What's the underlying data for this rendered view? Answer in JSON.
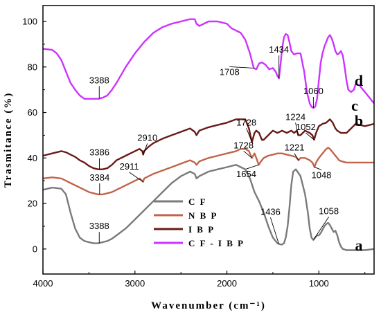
{
  "chart_data": {
    "type": "line",
    "xlabel": "Wavenumber (cm⁻¹)",
    "ylabel": "Trasmitance (%)",
    "xlim": [
      4000,
      400
    ],
    "ylim": [
      -11,
      107
    ],
    "xticks": [
      4000,
      3000,
      2000,
      1000
    ],
    "yticks": [
      0,
      20,
      40,
      60,
      80,
      100
    ],
    "legend": {
      "position": "bottom-left",
      "entries": [
        "C F",
        "N B P",
        "I B P",
        "C F - I B P"
      ]
    },
    "series": [
      {
        "name": "C F",
        "letter": "a",
        "color": "#7a7a7a",
        "x": [
          4000,
          3900,
          3800,
          3750,
          3700,
          3650,
          3600,
          3550,
          3500,
          3450,
          3400,
          3350,
          3300,
          3250,
          3200,
          3100,
          3000,
          2900,
          2800,
          2700,
          2600,
          2500,
          2400,
          2350,
          2330,
          2300,
          2200,
          2100,
          2000,
          1900,
          1850,
          1800,
          1750,
          1700,
          1650,
          1600,
          1550,
          1500,
          1450,
          1420,
          1400,
          1380,
          1360,
          1340,
          1320,
          1300,
          1280,
          1250,
          1200,
          1150,
          1120,
          1100,
          1080,
          1060,
          1040,
          1020,
          1000,
          980,
          960,
          940,
          920,
          900,
          880,
          860,
          840,
          820,
          800,
          780,
          760,
          740,
          700,
          650,
          600,
          500,
          400
        ],
        "y": [
          26,
          27,
          26.5,
          24,
          16,
          9,
          5,
          3.5,
          3,
          2.5,
          2.5,
          3,
          3.5,
          4.5,
          6,
          9,
          13,
          17,
          21,
          25,
          29,
          32,
          34,
          33,
          31,
          32,
          34,
          35,
          36,
          37,
          36,
          35,
          31,
          25,
          21,
          16,
          10,
          5,
          2.5,
          2,
          2,
          2.5,
          5,
          10,
          18,
          28,
          34,
          35,
          32,
          24,
          16,
          9,
          5,
          4,
          5,
          6,
          6,
          7,
          8.5,
          10,
          11,
          11.5,
          10.5,
          9,
          7.5,
          8,
          6,
          3,
          1,
          0,
          -0.5,
          -0.5,
          -0.5,
          -0.5,
          0
        ]
      },
      {
        "name": "N B P",
        "letter": "b",
        "color": "#c0644a",
        "x": [
          4000,
          3900,
          3800,
          3750,
          3700,
          3650,
          3600,
          3550,
          3500,
          3450,
          3400,
          3350,
          3300,
          3250,
          3200,
          3100,
          3000,
          2950,
          2920,
          2911,
          2900,
          2850,
          2800,
          2700,
          2600,
          2500,
          2400,
          2350,
          2330,
          2300,
          2200,
          2100,
          2000,
          1900,
          1850,
          1800,
          1760,
          1740,
          1728,
          1715,
          1700,
          1680,
          1654,
          1630,
          1600,
          1550,
          1500,
          1450,
          1400,
          1350,
          1300,
          1250,
          1221,
          1200,
          1150,
          1100,
          1070,
          1048,
          1030,
          1000,
          960,
          920,
          900,
          880,
          860,
          840,
          820,
          800,
          780,
          750,
          700,
          650,
          600,
          500,
          400
        ],
        "y": [
          31,
          31.5,
          31,
          30,
          29,
          28,
          27,
          26,
          25,
          24.5,
          24,
          24,
          24.5,
          25,
          26,
          28,
          30,
          31,
          30,
          29.5,
          31,
          32,
          33,
          34.5,
          36,
          37.5,
          39,
          38,
          37,
          38.5,
          40,
          41,
          42,
          43,
          44,
          44,
          43,
          41,
          40,
          41,
          42,
          40,
          37,
          38.5,
          40,
          41,
          41.5,
          42,
          42,
          41.5,
          41,
          40.5,
          39,
          40,
          40,
          39,
          38,
          36,
          38,
          40,
          42,
          44,
          44.5,
          44,
          43,
          42,
          41,
          40,
          39,
          38.5,
          38,
          38,
          38,
          38,
          38
        ]
      },
      {
        "name": "I B P",
        "letter": "c",
        "color": "#6b1a16",
        "x": [
          4000,
          3900,
          3800,
          3750,
          3700,
          3650,
          3600,
          3550,
          3500,
          3450,
          3400,
          3350,
          3300,
          3250,
          3200,
          3100,
          3000,
          2950,
          2920,
          2910,
          2900,
          2850,
          2800,
          2700,
          2600,
          2500,
          2400,
          2350,
          2330,
          2300,
          2200,
          2100,
          2000,
          1900,
          1850,
          1800,
          1760,
          1740,
          1728,
          1700,
          1680,
          1650,
          1620,
          1600,
          1550,
          1500,
          1450,
          1400,
          1350,
          1300,
          1270,
          1240,
          1224,
          1200,
          1150,
          1100,
          1070,
          1052,
          1030,
          1000,
          960,
          920,
          880,
          850,
          820,
          800,
          760,
          700,
          650,
          600,
          500,
          400
        ],
        "y": [
          41,
          42,
          43,
          42.5,
          41.5,
          40.5,
          39,
          38,
          36.5,
          35.5,
          35,
          35,
          35.5,
          37,
          39,
          41,
          43,
          44,
          43,
          41.5,
          43,
          45,
          46.5,
          48.5,
          50,
          51.5,
          53,
          51.5,
          50,
          52,
          53.5,
          54.5,
          55.5,
          57,
          57,
          57,
          53,
          49,
          47,
          51,
          52,
          51,
          48,
          48,
          50,
          52,
          51,
          52,
          51,
          52,
          51,
          52,
          50,
          50,
          52,
          51,
          50,
          48,
          51,
          54,
          55,
          55.5,
          57,
          55.5,
          53,
          52,
          51,
          51,
          53,
          55,
          54,
          55
        ]
      },
      {
        "name": "C F - I B P",
        "letter": "d",
        "color": "#cc33ff",
        "x": [
          4000,
          3900,
          3850,
          3800,
          3750,
          3700,
          3650,
          3600,
          3550,
          3500,
          3450,
          3400,
          3350,
          3300,
          3250,
          3200,
          3100,
          3000,
          2900,
          2800,
          2700,
          2600,
          2500,
          2400,
          2350,
          2330,
          2300,
          2200,
          2100,
          2000,
          1950,
          1900,
          1850,
          1800,
          1750,
          1708,
          1680,
          1650,
          1620,
          1580,
          1540,
          1500,
          1470,
          1450,
          1434,
          1420,
          1400,
          1380,
          1360,
          1340,
          1320,
          1300,
          1270,
          1240,
          1200,
          1160,
          1130,
          1100,
          1080,
          1060,
          1040,
          1020,
          1000,
          980,
          960,
          940,
          920,
          900,
          880,
          860,
          840,
          820,
          800,
          780,
          760,
          740,
          720,
          700,
          680,
          650,
          620,
          600,
          560,
          540,
          520,
          500,
          480,
          460,
          440,
          420,
          400
        ],
        "y": [
          88,
          87.5,
          86,
          83,
          78,
          73,
          70,
          67.5,
          66,
          66,
          66,
          66,
          66.5,
          67.5,
          70,
          73,
          80,
          86,
          91,
          95,
          97.5,
          99,
          100,
          101,
          101,
          99,
          98,
          100,
          100,
          99,
          97,
          96,
          95,
          92,
          86,
          79.5,
          79,
          81.5,
          82,
          81,
          79,
          79.5,
          78,
          76,
          75,
          80,
          88,
          93,
          94.5,
          94,
          91,
          87,
          85.5,
          86,
          86,
          78,
          69,
          64,
          62.5,
          62,
          62.5,
          66,
          74,
          82,
          86,
          89,
          91,
          93,
          94,
          92.5,
          90,
          87,
          85.5,
          86,
          87,
          85,
          80,
          74,
          70,
          69,
          70,
          72.5,
          72,
          71,
          70,
          69,
          68,
          67,
          66,
          65,
          64
        ]
      }
    ],
    "curve_letters": [
      "a",
      "b",
      "c",
      "d"
    ],
    "annotations": [
      {
        "series": "d",
        "label": "3388",
        "x": 3388
      },
      {
        "series": "d",
        "label": "1708",
        "x": 1708
      },
      {
        "series": "d",
        "label": "1434",
        "x": 1434
      },
      {
        "series": "d",
        "label": "1060",
        "x": 1060
      },
      {
        "series": "c",
        "label": "3386",
        "x": 3386
      },
      {
        "series": "c",
        "label": "2910",
        "x": 2910
      },
      {
        "series": "c",
        "label": "1728",
        "x": 1728
      },
      {
        "series": "c",
        "label": "1224",
        "x": 1224
      },
      {
        "series": "c",
        "label": "1052",
        "x": 1052
      },
      {
        "series": "b",
        "label": "3384",
        "x": 3384
      },
      {
        "series": "b",
        "label": "2911",
        "x": 2911
      },
      {
        "series": "b",
        "label": "1728",
        "x": 1728
      },
      {
        "series": "b",
        "label": "1654",
        "x": 1654
      },
      {
        "series": "b",
        "label": "1221",
        "x": 1221
      },
      {
        "series": "b",
        "label": "1048",
        "x": 1048
      },
      {
        "series": "a",
        "label": "3388",
        "x": 3388
      },
      {
        "series": "a",
        "label": "1436",
        "x": 1436
      },
      {
        "series": "a",
        "label": "1058",
        "x": 1058
      }
    ]
  }
}
